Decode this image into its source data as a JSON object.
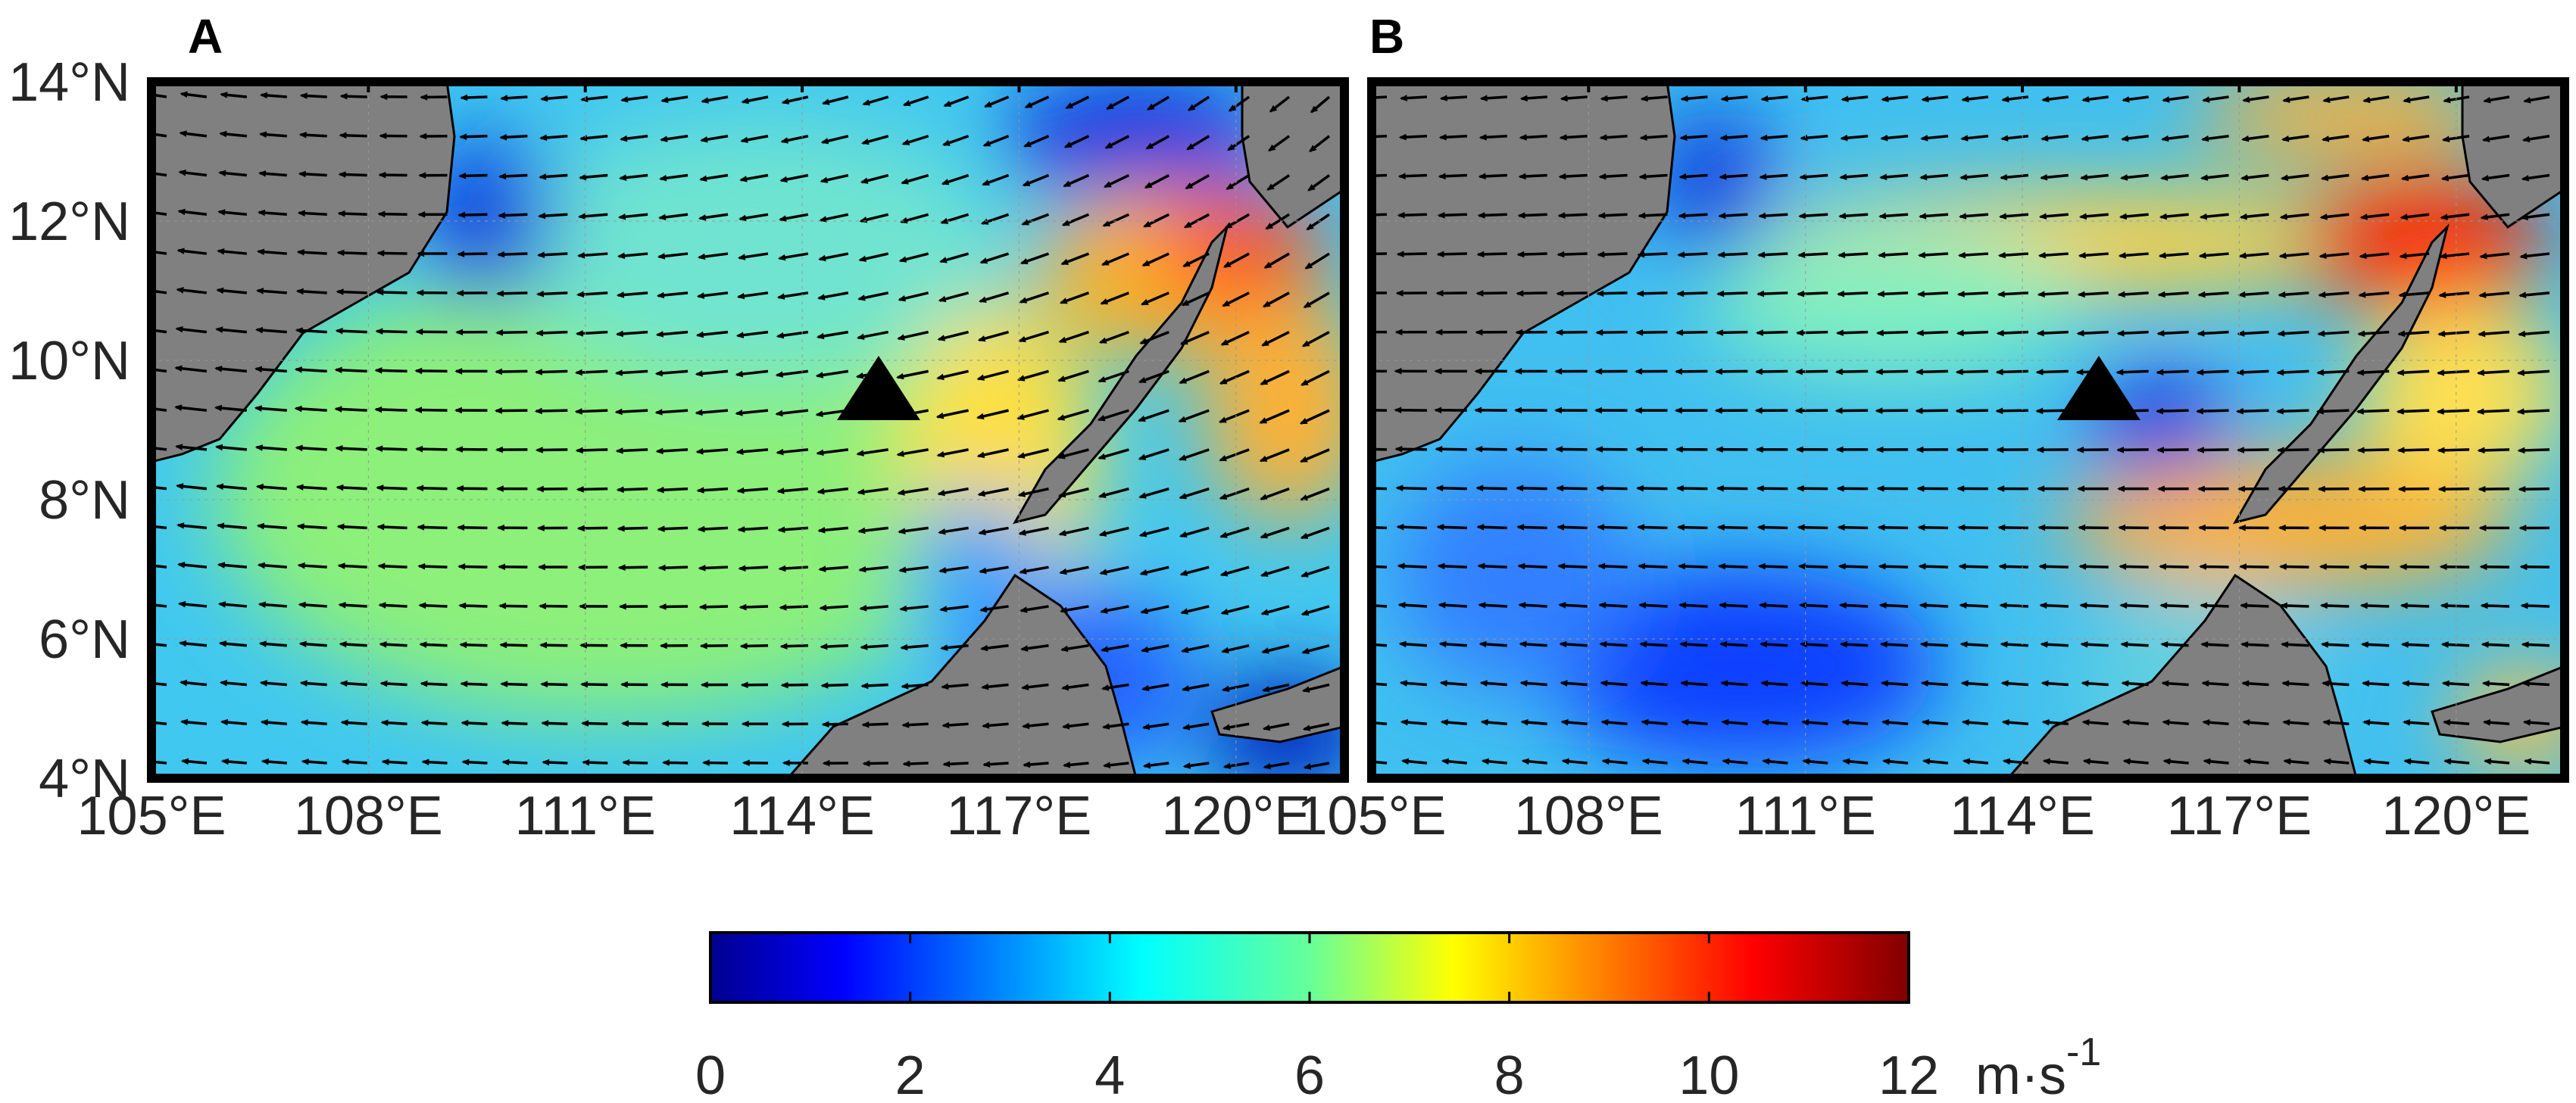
{
  "panels": [
    {
      "letter": "A"
    },
    {
      "letter": "B"
    }
  ],
  "axes": {
    "lon_labels": [
      "105°E",
      "108°E",
      "111°E",
      "114°E",
      "117°E",
      "120°E"
    ],
    "lat_labels": [
      "4°N",
      "6°N",
      "8°N",
      "10°N",
      "12°N",
      "14°N"
    ],
    "lon_values": [
      105,
      108,
      111,
      114,
      117,
      120
    ],
    "lat_values": [
      4,
      6,
      8,
      10,
      12,
      14
    ],
    "lon_range": [
      105,
      121.5
    ],
    "lat_range": [
      4,
      14
    ]
  },
  "colorbar": {
    "ticks": [
      "0",
      "2",
      "4",
      "6",
      "8",
      "10",
      "12"
    ],
    "tick_values": [
      0,
      2,
      4,
      6,
      8,
      10,
      12
    ],
    "range": [
      0,
      12
    ],
    "unit_base": "m·s",
    "unit_exp": "-1",
    "colormap": "jet"
  },
  "colors": {
    "land": "#808080",
    "frame": "#000000",
    "arrow": "#000000",
    "marker": "#000000"
  },
  "marker": {
    "shape": "triangle",
    "lon": 115.5,
    "lat": 9.8
  }
}
